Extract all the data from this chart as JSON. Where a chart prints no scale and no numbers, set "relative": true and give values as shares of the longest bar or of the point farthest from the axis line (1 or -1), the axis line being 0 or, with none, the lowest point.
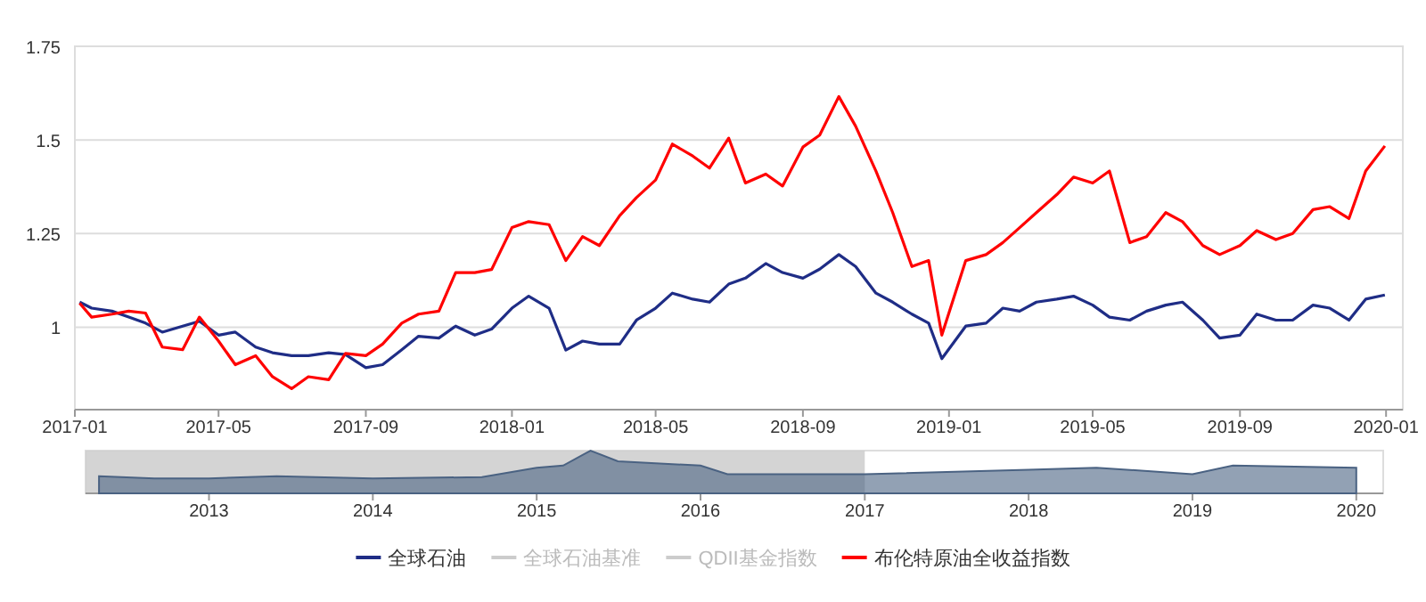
{
  "chart_data": [
    {
      "type": "line",
      "x": [
        "2017-01-05",
        "2017-01-15",
        "2017-02-01",
        "2017-02-15",
        "2017-03-01",
        "2017-03-15",
        "2017-04-01",
        "2017-04-15",
        "2017-05-01",
        "2017-05-15",
        "2017-06-01",
        "2017-06-15",
        "2017-07-01",
        "2017-07-15",
        "2017-08-01",
        "2017-08-15",
        "2017-09-01",
        "2017-09-15",
        "2017-10-01",
        "2017-10-15",
        "2017-11-01",
        "2017-11-15",
        "2017-12-01",
        "2017-12-15",
        "2018-01-01",
        "2018-01-15",
        "2018-02-01",
        "2018-02-15",
        "2018-03-01",
        "2018-03-15",
        "2018-04-01",
        "2018-04-15",
        "2018-05-01",
        "2018-05-15",
        "2018-06-01",
        "2018-06-15",
        "2018-07-01",
        "2018-07-15",
        "2018-08-01",
        "2018-08-15",
        "2018-09-01",
        "2018-09-15",
        "2018-10-01",
        "2018-10-15",
        "2018-11-01",
        "2018-11-15",
        "2018-12-01",
        "2018-12-15",
        "2018-12-26",
        "2019-01-15",
        "2019-02-01",
        "2019-02-15",
        "2019-03-01",
        "2019-03-15",
        "2019-04-01",
        "2019-04-15",
        "2019-05-01",
        "2019-05-15",
        "2019-06-01",
        "2019-06-15",
        "2019-07-01",
        "2019-07-15",
        "2019-08-01",
        "2019-08-15",
        "2019-09-01",
        "2019-09-15",
        "2019-10-01",
        "2019-10-15",
        "2019-11-01",
        "2019-11-15",
        "2019-12-01",
        "2019-12-15",
        "2019-12-31"
      ],
      "series": [
        {
          "name": "全球石油",
          "color": "#1f2d86",
          "values": [
            1.067,
            1.051,
            1.043,
            1.027,
            1.011,
            0.987,
            1.003,
            1.016,
            0.979,
            0.987,
            0.947,
            0.932,
            0.924,
            0.924,
            0.932,
            0.927,
            0.892,
            0.9,
            0.94,
            0.976,
            0.971,
            1.003,
            0.979,
            0.995,
            1.051,
            1.083,
            1.051,
            0.939,
            0.963,
            0.955,
            0.955,
            1.019,
            1.051,
            1.091,
            1.075,
            1.067,
            1.115,
            1.131,
            1.17,
            1.146,
            1.131,
            1.155,
            1.194,
            1.162,
            1.091,
            1.067,
            1.035,
            1.011,
            0.916,
            1.003,
            1.011,
            1.051,
            1.043,
            1.067,
            1.075,
            1.083,
            1.059,
            1.027,
            1.019,
            1.043,
            1.059,
            1.067,
            1.019,
            0.971,
            0.979,
            1.035,
            1.019,
            1.019,
            1.059,
            1.051,
            1.019,
            1.075,
            1.086
          ]
        },
        {
          "name": "全球石油基准",
          "color": "#cccccc",
          "values": [
            null,
            null,
            null,
            null,
            null,
            null,
            null,
            null,
            null,
            null,
            null,
            null,
            null,
            null,
            null,
            null,
            null,
            null,
            null,
            null,
            null,
            null,
            null,
            null,
            null,
            null,
            null,
            null,
            null,
            null,
            null,
            null,
            null,
            null,
            null,
            null,
            null,
            null,
            null,
            null,
            null,
            null,
            null,
            null,
            null,
            null,
            null,
            null,
            null,
            null,
            null,
            null,
            null,
            null,
            null,
            null,
            null,
            null,
            null,
            null,
            null,
            null,
            null,
            null,
            null,
            null,
            null,
            null,
            null,
            null,
            null,
            null,
            null
          ]
        },
        {
          "name": "QDII基金指数",
          "color": "#cccccc",
          "values": [
            null,
            null,
            null,
            null,
            null,
            null,
            null,
            null,
            null,
            null,
            null,
            null,
            null,
            null,
            null,
            null,
            null,
            null,
            null,
            null,
            null,
            null,
            null,
            null,
            null,
            null,
            null,
            null,
            null,
            null,
            null,
            null,
            null,
            null,
            null,
            null,
            null,
            null,
            null,
            null,
            null,
            null,
            null,
            null,
            null,
            null,
            null,
            null,
            null,
            null,
            null,
            null,
            null,
            null,
            null,
            null,
            null,
            null,
            null,
            null,
            null,
            null,
            null,
            null,
            null,
            null,
            null,
            null,
            null,
            null,
            null,
            null,
            null
          ]
        },
        {
          "name": "布伦特原油全收益指数",
          "color": "#ff0000",
          "values": [
            1.064,
            1.027,
            1.035,
            1.043,
            1.038,
            0.947,
            0.94,
            1.027,
            0.963,
            0.9,
            0.924,
            0.868,
            0.836,
            0.868,
            0.86,
            0.93,
            0.924,
            0.955,
            1.011,
            1.035,
            1.043,
            1.146,
            1.146,
            1.154,
            1.266,
            1.282,
            1.274,
            1.178,
            1.242,
            1.218,
            1.298,
            1.346,
            1.393,
            1.489,
            1.457,
            1.425,
            1.505,
            1.385,
            1.409,
            1.377,
            1.481,
            1.513,
            1.616,
            1.537,
            1.417,
            1.306,
            1.162,
            1.178,
            0.979,
            1.178,
            1.194,
            1.226,
            1.266,
            1.306,
            1.354,
            1.401,
            1.385,
            1.417,
            1.226,
            1.242,
            1.306,
            1.282,
            1.218,
            1.194,
            1.218,
            1.258,
            1.234,
            1.25,
            1.314,
            1.322,
            1.29,
            1.417,
            1.484
          ]
        }
      ],
      "xlim": [
        "2017-01-01",
        "2020-01-15"
      ],
      "xticks": [
        "2017-01",
        "2017-05",
        "2017-09",
        "2018-01",
        "2018-05",
        "2018-09",
        "2019-01",
        "2019-05",
        "2019-09",
        "2020-01"
      ],
      "ylim": [
        0.78,
        1.75
      ],
      "yticks": [
        1,
        1.25,
        1.5,
        1.75
      ],
      "grid": "y",
      "legend": "bottom"
    },
    {
      "type": "area",
      "relative": true,
      "x": [
        "2012-05",
        "2012-09",
        "2013-01",
        "2013-06",
        "2014-01",
        "2014-09",
        "2015-01",
        "2015-03",
        "2015-05",
        "2015-07",
        "2016-01",
        "2016-03",
        "2017-01",
        "2018-01",
        "2018-06",
        "2019-01",
        "2019-04",
        "2020-01"
      ],
      "series": [
        {
          "color": "#4a6282",
          "values": [
            0.4,
            0.35,
            0.35,
            0.4,
            0.35,
            0.38,
            0.6,
            0.65,
            1.0,
            0.75,
            0.65,
            0.45,
            0.45,
            0.55,
            0.6,
            0.45,
            0.65,
            0.6
          ]
        }
      ],
      "xlim": [
        "2012-04-01",
        "2020-03-01"
      ],
      "xticks": [
        "2013",
        "2014",
        "2015",
        "2016",
        "2017",
        "2018",
        "2019",
        "2020"
      ],
      "bands": [
        {
          "axis": "x",
          "from": "2012-04-01",
          "to": "2017-01-01",
          "color": "#cccccc"
        }
      ]
    }
  ]
}
